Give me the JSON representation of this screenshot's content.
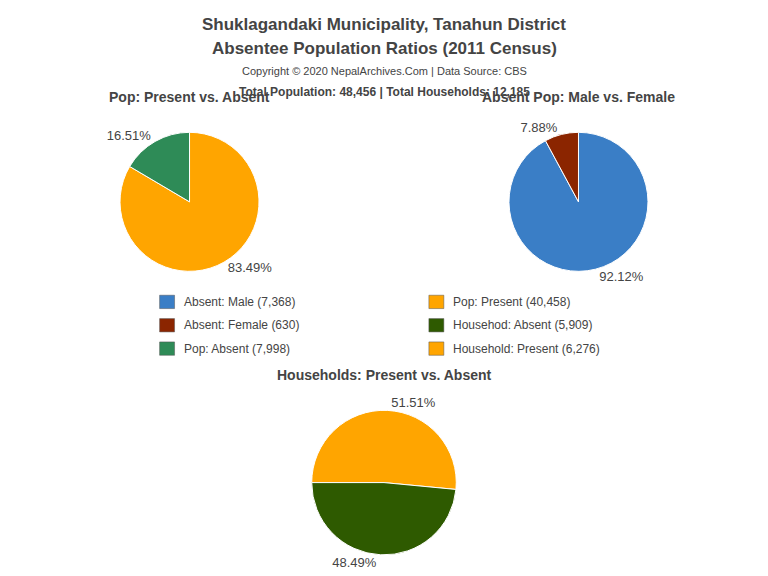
{
  "title": "Shuklagandaki Municipality, Tanahun District",
  "subtitle": "Absentee Population Ratios (2011 Census)",
  "annotations": [
    "Copyright © 2020 NepalArchives.Com | Data Source: CBS",
    "Total Population: 48,456 | Total Households: 12,185"
  ],
  "series": [
    {
      "name": "Absent: Male (7,368)",
      "color": "#3A7EC6"
    },
    {
      "name": "Absent: Female (630)",
      "color": "#8B2500"
    },
    {
      "name": "Pop: Absent (7,998)",
      "color": "#2E8B57"
    },
    {
      "name": "Pop: Present (40,458)",
      "color": "#FFA500"
    },
    {
      "name": "Househod: Absent (5,909)",
      "color": "#2E5A00"
    },
    {
      "name": "Household: Present (6,276)",
      "color": "#FFA500"
    }
  ],
  "chart_data": [
    {
      "type": "pie",
      "title": "Pop: Present vs. Absent",
      "values": [
        83.49,
        16.51
      ],
      "value_labels": [
        "83.49%",
        "16.51%"
      ],
      "colors": [
        "#FFA500",
        "#2E8B57"
      ],
      "data_labels": true
    },
    {
      "type": "pie",
      "title": "Absent Pop: Male vs. Female",
      "values": [
        92.12,
        7.88
      ],
      "value_labels": [
        "92.12%",
        "7.88%"
      ],
      "colors": [
        "#3A7EC6",
        "#8B2500"
      ],
      "data_labels": true
    },
    {
      "type": "pie",
      "title": "Households: Present vs. Absent",
      "values": [
        51.51,
        48.49
      ],
      "value_labels": [
        "51.51%",
        "48.49%"
      ],
      "colors": [
        "#FFA500",
        "#2E5A00"
      ],
      "data_labels": true
    }
  ]
}
